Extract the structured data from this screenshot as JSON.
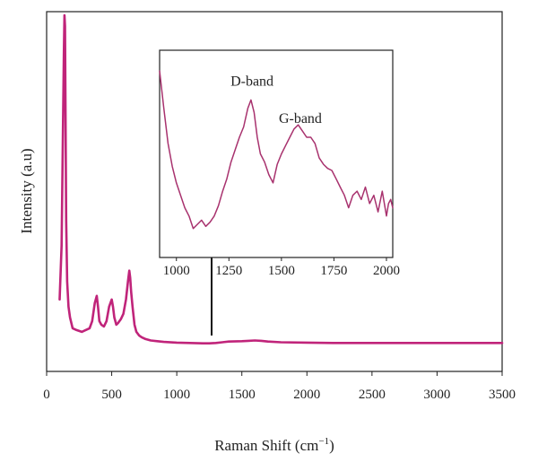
{
  "chart_data": [
    {
      "type": "line",
      "title": "",
      "xlabel": "Raman Shift (cm",
      "xlabel_sup": "−1",
      "xlabel_close": ")",
      "ylabel": "Intensity (a.u)",
      "xlim": [
        0,
        3500
      ],
      "ylim": [
        0,
        100
      ],
      "xticks": [
        0,
        500,
        1000,
        1500,
        2000,
        2500,
        3000,
        3500
      ],
      "grid": false,
      "y_tick_labels": false,
      "color": "#c0247a",
      "series": [
        {
          "x": [
            100,
            115,
            125,
            132,
            137,
            141,
            145,
            150,
            158,
            168,
            180,
            200,
            230,
            270,
            300,
            330,
            350,
            370,
            385,
            395,
            405,
            420,
            440,
            460,
            480,
            500,
            510,
            520,
            535,
            550,
            570,
            590,
            610,
            625,
            635,
            642,
            650,
            660,
            675,
            690,
            710,
            730,
            760,
            800,
            850,
            900,
            1000,
            1100,
            1200,
            1250,
            1300,
            1350,
            1400,
            1500,
            1550,
            1600,
            1650,
            1700,
            1800,
            2000,
            2200,
            2400,
            2600,
            2800,
            3000,
            3200,
            3400,
            3500
          ],
          "values": [
            20,
            35,
            65,
            88,
            99,
            96,
            75,
            42,
            25,
            18,
            15,
            12,
            11.5,
            11,
            11.5,
            12,
            14,
            19,
            21,
            18,
            14,
            13,
            12.5,
            14,
            18,
            20,
            18,
            15,
            13,
            13.5,
            14.5,
            16,
            20,
            25,
            28,
            26,
            22,
            18,
            13,
            11,
            10,
            9.5,
            9,
            8.6,
            8.4,
            8.2,
            8.0,
            7.9,
            7.8,
            7.8,
            7.9,
            8.1,
            8.3,
            8.4,
            8.5,
            8.6,
            8.5,
            8.3,
            8.1,
            8.0,
            7.9,
            7.9,
            7.9,
            7.9,
            7.9,
            7.9,
            7.9,
            7.9
          ]
        }
      ]
    },
    {
      "type": "line",
      "title": "",
      "xlabel": "",
      "ylabel": "",
      "xlim": [
        920,
        2030
      ],
      "ylim": [
        0,
        100
      ],
      "xticks": [
        1000,
        1250,
        1500,
        1750,
        2000
      ],
      "grid": false,
      "y_tick_labels": false,
      "color": "#a8326e",
      "annotations": [
        {
          "text": "D-band",
          "x": 1360,
          "y": 83
        },
        {
          "text": "G-band",
          "x": 1590,
          "y": 65
        }
      ],
      "series": [
        {
          "x": [
            920,
            940,
            960,
            980,
            1000,
            1020,
            1040,
            1060,
            1080,
            1100,
            1120,
            1140,
            1160,
            1180,
            1200,
            1220,
            1240,
            1260,
            1280,
            1300,
            1320,
            1340,
            1355,
            1370,
            1385,
            1400,
            1420,
            1440,
            1460,
            1480,
            1500,
            1520,
            1540,
            1560,
            1580,
            1600,
            1620,
            1640,
            1660,
            1680,
            1700,
            1720,
            1740,
            1760,
            1780,
            1800,
            1820,
            1840,
            1860,
            1880,
            1900,
            1920,
            1940,
            1960,
            1980,
            2000,
            2010,
            2020,
            2030
          ],
          "values": [
            90,
            72,
            55,
            44,
            36,
            30,
            24,
            20,
            14,
            16,
            18,
            15,
            17,
            20,
            25,
            32,
            38,
            46,
            52,
            58,
            63,
            72,
            76,
            70,
            58,
            50,
            46,
            40,
            36,
            45,
            50,
            54,
            58,
            62,
            64,
            61,
            58,
            58,
            55,
            48,
            45,
            43,
            42,
            38,
            34,
            30,
            24,
            30,
            32,
            28,
            34,
            26,
            30,
            22,
            32,
            20,
            26,
            28,
            24
          ]
        }
      ]
    }
  ]
}
